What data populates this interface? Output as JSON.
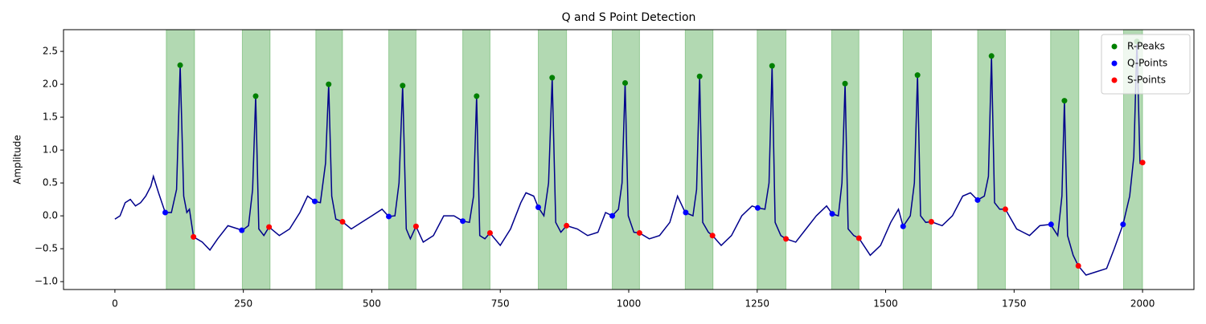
{
  "chart_data": {
    "type": "line",
    "title": "Q and S Point Detection",
    "y_label": "Amplitude",
    "xlim": [
      -100,
      2100
    ],
    "ylim": [
      -1.12,
      2.83
    ],
    "xticks": [
      0,
      250,
      500,
      750,
      1000,
      1250,
      1500,
      1750,
      2000
    ],
    "yticks": [
      {
        "value": -1,
        "label": "−1.0"
      },
      {
        "value": -0.5,
        "label": "−0.5"
      },
      {
        "value": 0,
        "label": "0.0"
      },
      0.5,
      {
        "value": 1,
        "label": "1.0"
      },
      1.5,
      {
        "value": 2,
        "label": "2.0"
      },
      2.5
    ],
    "legend": "upper right",
    "signal": {
      "color": "#00008b",
      "x": [
        0,
        10,
        20,
        30,
        40,
        50,
        60,
        70,
        75,
        85,
        98,
        110,
        120,
        127,
        134,
        140,
        145,
        153,
        170,
        185,
        200,
        220,
        240,
        248,
        260,
        268,
        274,
        280,
        290,
        300,
        320,
        340,
        360,
        375,
        389,
        400,
        410,
        416,
        422,
        430,
        443,
        460,
        480,
        500,
        520,
        533,
        545,
        553,
        560,
        567,
        575,
        586,
        600,
        620,
        640,
        660,
        677,
        690,
        698,
        704,
        710,
        720,
        730,
        750,
        770,
        790,
        800,
        815,
        824,
        835,
        844,
        851,
        858,
        868,
        879,
        900,
        920,
        940,
        955,
        968,
        980,
        987,
        993,
        999,
        1010,
        1021,
        1040,
        1060,
        1080,
        1095,
        1110,
        1125,
        1132,
        1138,
        1144,
        1155,
        1163,
        1180,
        1200,
        1220,
        1240,
        1251,
        1265,
        1273,
        1279,
        1285,
        1296,
        1306,
        1325,
        1345,
        1365,
        1385,
        1396,
        1408,
        1415,
        1421,
        1427,
        1438,
        1448,
        1470,
        1490,
        1510,
        1525,
        1534,
        1548,
        1556,
        1562,
        1568,
        1578,
        1589,
        1610,
        1630,
        1650,
        1665,
        1679,
        1692,
        1700,
        1706,
        1712,
        1722,
        1733,
        1755,
        1780,
        1800,
        1821,
        1835,
        1843,
        1848,
        1854,
        1865,
        1875,
        1890,
        1910,
        1930,
        1945,
        1962,
        1975,
        1983,
        1989,
        1995,
        2000
      ],
      "values": [
        -0.05,
        0.0,
        0.2,
        0.25,
        0.15,
        0.2,
        0.3,
        0.45,
        0.6,
        0.35,
        0.05,
        0.05,
        0.4,
        2.29,
        0.3,
        0.05,
        0.1,
        -0.32,
        -0.4,
        -0.52,
        -0.35,
        -0.15,
        -0.2,
        -0.22,
        -0.15,
        0.4,
        1.82,
        -0.2,
        -0.3,
        -0.17,
        -0.3,
        -0.2,
        0.05,
        0.3,
        0.22,
        0.2,
        0.8,
        2.0,
        0.3,
        -0.05,
        -0.09,
        -0.2,
        -0.1,
        0.0,
        0.1,
        -0.01,
        0.0,
        0.5,
        1.98,
        -0.2,
        -0.35,
        -0.16,
        -0.4,
        -0.3,
        0.0,
        0.0,
        -0.08,
        -0.1,
        0.3,
        1.82,
        -0.3,
        -0.35,
        -0.26,
        -0.45,
        -0.2,
        0.2,
        0.35,
        0.3,
        0.13,
        0.0,
        0.5,
        2.1,
        -0.1,
        -0.25,
        -0.15,
        -0.2,
        -0.3,
        -0.25,
        0.05,
        0.0,
        0.1,
        0.5,
        2.02,
        0.0,
        -0.25,
        -0.26,
        -0.35,
        -0.3,
        -0.1,
        0.3,
        0.05,
        0.0,
        0.4,
        2.12,
        -0.1,
        -0.25,
        -0.3,
        -0.45,
        -0.3,
        0.0,
        0.15,
        0.12,
        0.1,
        0.5,
        2.28,
        -0.1,
        -0.3,
        -0.35,
        -0.4,
        -0.2,
        0.0,
        0.15,
        0.03,
        0.0,
        0.5,
        2.01,
        -0.2,
        -0.3,
        -0.34,
        -0.6,
        -0.45,
        -0.1,
        0.1,
        -0.16,
        0.0,
        0.5,
        2.14,
        0.0,
        -0.1,
        -0.09,
        -0.15,
        0.0,
        0.3,
        0.35,
        0.24,
        0.3,
        0.6,
        2.43,
        0.2,
        0.1,
        0.1,
        -0.2,
        -0.3,
        -0.15,
        -0.13,
        -0.3,
        0.3,
        1.75,
        -0.3,
        -0.6,
        -0.76,
        -0.9,
        -0.85,
        -0.8,
        -0.5,
        -0.13,
        0.3,
        0.9,
        2.65,
        0.8,
        0.81
      ]
    },
    "spans": {
      "color": "#008000",
      "ranges": [
        [
          100,
          155
        ],
        [
          248,
          302
        ],
        [
          391,
          443
        ],
        [
          533,
          586
        ],
        [
          677,
          730
        ],
        [
          824,
          879
        ],
        [
          968,
          1021
        ],
        [
          1110,
          1164
        ],
        [
          1250,
          1306
        ],
        [
          1395,
          1448
        ],
        [
          1534,
          1589
        ],
        [
          1679,
          1733
        ],
        [
          1821,
          1876
        ],
        [
          1963,
          2000
        ]
      ]
    },
    "series": [
      {
        "name": "R-Peaks",
        "color": "#008000",
        "x": [
          127,
          274,
          416,
          560,
          704,
          851,
          993,
          1138,
          1279,
          1421,
          1562,
          1706,
          1848,
          1989
        ],
        "values": [
          2.29,
          1.82,
          2.0,
          1.98,
          1.82,
          2.1,
          2.02,
          2.12,
          2.28,
          2.01,
          2.14,
          2.43,
          1.75,
          2.65
        ]
      },
      {
        "name": "Q-Points",
        "color": "#0000ff",
        "x": [
          98,
          247,
          389,
          533,
          677,
          824,
          968,
          1111,
          1251,
          1396,
          1534,
          1679,
          1822,
          1962
        ],
        "values": [
          0.05,
          -0.22,
          0.22,
          -0.01,
          -0.08,
          0.13,
          0.0,
          0.05,
          0.12,
          0.03,
          -0.16,
          0.24,
          -0.13,
          -0.13
        ]
      },
      {
        "name": "S-Points",
        "color": "#ff0000",
        "x": [
          153,
          300,
          443,
          586,
          730,
          879,
          1021,
          1163,
          1306,
          1448,
          1589,
          1733,
          1875,
          2000
        ],
        "values": [
          -0.32,
          -0.17,
          -0.09,
          -0.16,
          -0.26,
          -0.15,
          -0.26,
          -0.3,
          -0.35,
          -0.34,
          -0.09,
          0.1,
          -0.76,
          0.81
        ]
      }
    ]
  }
}
